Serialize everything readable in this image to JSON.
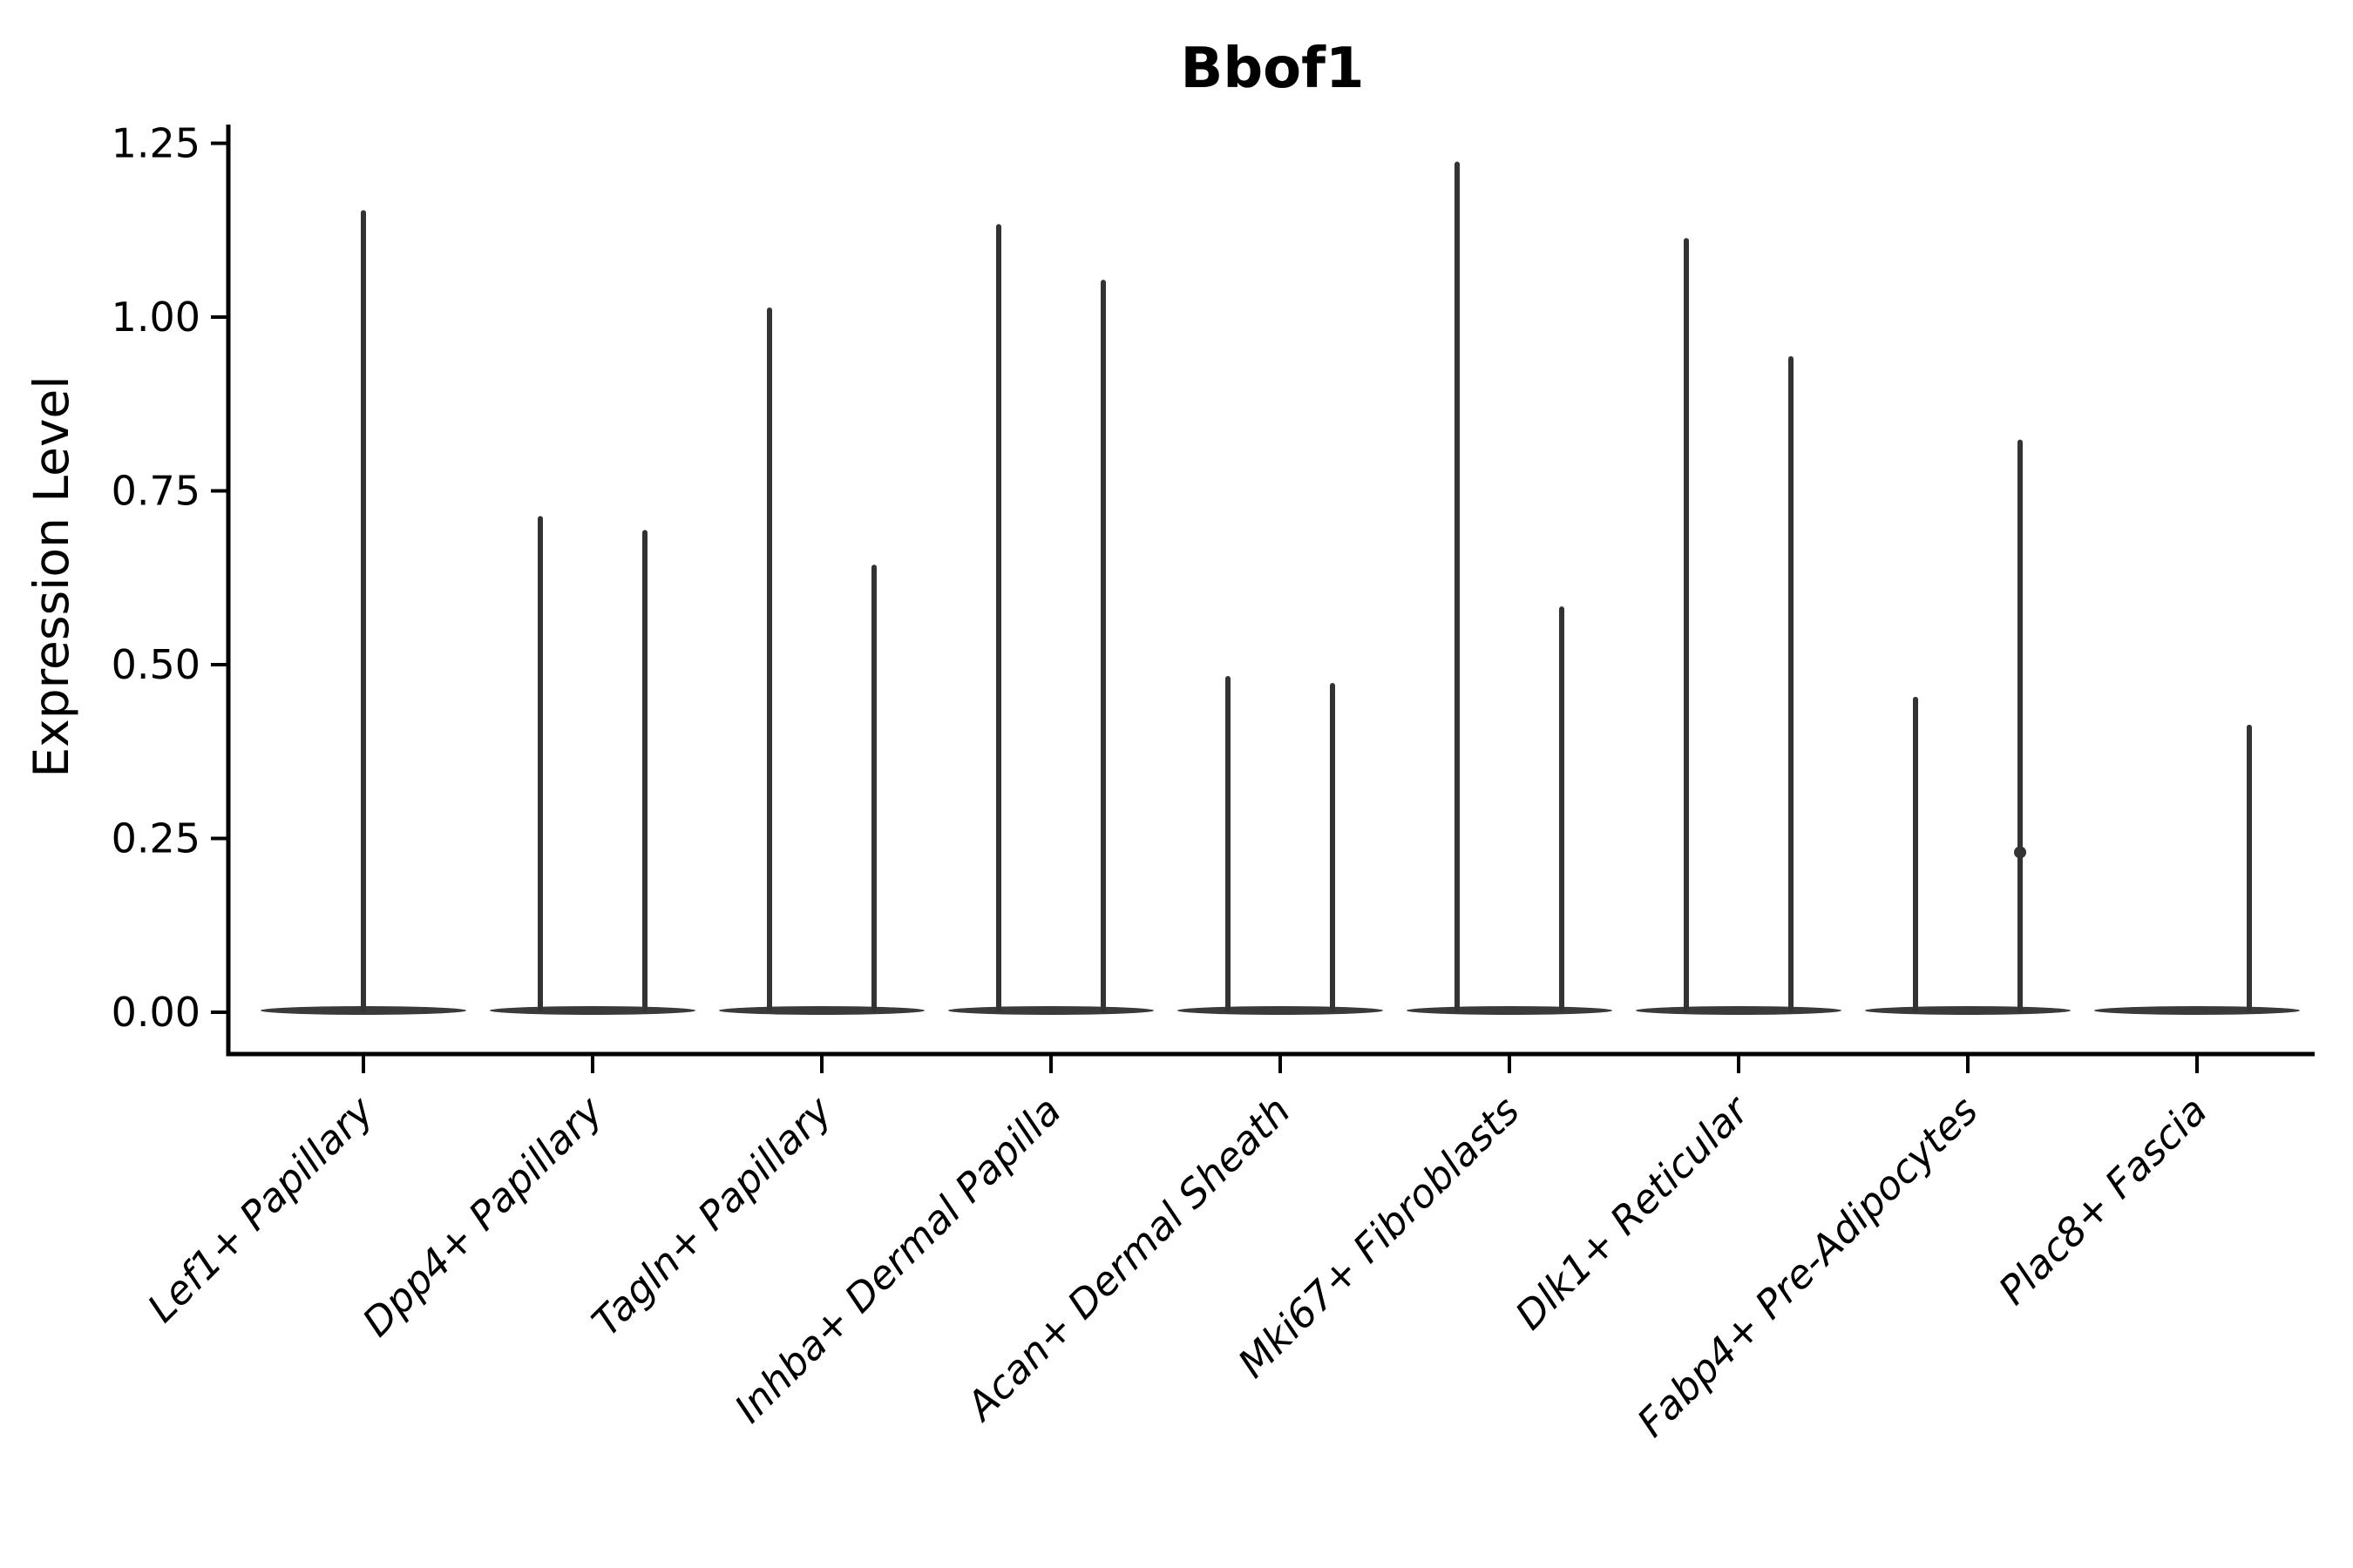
{
  "chart_data": {
    "type": "violin",
    "title": "Bbof1",
    "ylabel": "Expression Level",
    "xlabel": "",
    "ylim": [
      -0.06,
      1.26
    ],
    "yticks": [
      "0.00",
      "0.25",
      "0.50",
      "0.75",
      "1.00",
      "1.25"
    ],
    "grid": false,
    "legend": null,
    "x_tick_rotation": 45,
    "categories": [
      "Lef1+ Papillary",
      "Dpp4+ Papillary",
      "Tagln+ Papillary",
      "Inhba+ Dermal Papilla",
      "Acan+ Dermal Sheath",
      "Mki67+ Fibroblasts",
      "Dlk1+ Reticular",
      "Fabp4+ Pre-Adipocytes",
      "Plac8+ Fascia"
    ],
    "violins": [
      {
        "category": "Lef1+ Papillary",
        "spikes": [
          {
            "side": "center",
            "max": 1.15
          }
        ]
      },
      {
        "category": "Dpp4+ Papillary",
        "spikes": [
          {
            "side": "left",
            "max": 0.71
          },
          {
            "side": "right",
            "max": 0.69
          }
        ]
      },
      {
        "category": "Tagln+ Papillary",
        "spikes": [
          {
            "side": "left",
            "max": 1.01
          },
          {
            "side": "right",
            "max": 0.64
          }
        ]
      },
      {
        "category": "Inhba+ Dermal Papilla",
        "spikes": [
          {
            "side": "left",
            "max": 1.13
          },
          {
            "side": "right",
            "max": 1.05
          }
        ]
      },
      {
        "category": "Acan+ Dermal Sheath",
        "spikes": [
          {
            "side": "left",
            "max": 0.48
          },
          {
            "side": "right",
            "max": 0.47
          }
        ]
      },
      {
        "category": "Mki67+ Fibroblasts",
        "spikes": [
          {
            "side": "left",
            "max": 1.22
          },
          {
            "side": "right",
            "max": 0.58
          }
        ]
      },
      {
        "category": "Dlk1+ Reticular",
        "spikes": [
          {
            "side": "left",
            "max": 1.11
          },
          {
            "side": "right",
            "max": 0.94
          }
        ]
      },
      {
        "category": "Fabp4+ Pre-Adipocytes",
        "spikes": [
          {
            "side": "left",
            "max": 0.45
          },
          {
            "side": "right",
            "max": 0.82,
            "dot": 0.23
          }
        ]
      },
      {
        "category": "Plac8+ Fascia",
        "spikes": [
          {
            "side": "right",
            "max": 0.41
          }
        ]
      }
    ],
    "colors": {
      "violin": "#333333",
      "violin_base": "#3a3a3a",
      "axis": "#000000",
      "text": "#000000",
      "background": "#ffffff"
    }
  }
}
